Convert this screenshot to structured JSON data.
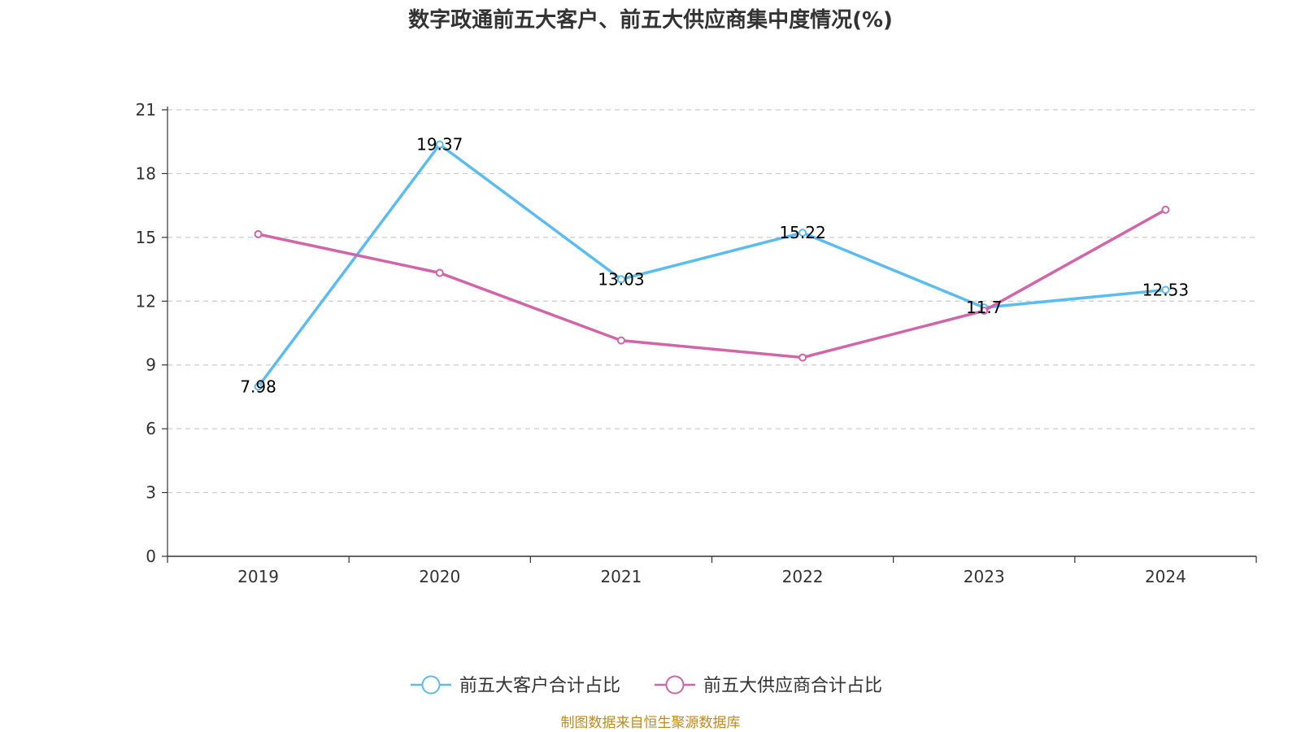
{
  "chart_data": {
    "type": "line",
    "title": "数字政通前五大客户、前五大供应商集中度情况(%)",
    "categories": [
      "2019",
      "2020",
      "2021",
      "2022",
      "2023",
      "2024"
    ],
    "ylim": [
      0,
      21
    ],
    "yticks": [
      0,
      3,
      6,
      9,
      12,
      15,
      18,
      21
    ],
    "grid": true,
    "legend_position": "bottom",
    "series": [
      {
        "name": "前五大客户合计占比",
        "color": "#5bbcef",
        "values": [
          7.98,
          19.37,
          13.03,
          15.22,
          11.7,
          12.53
        ],
        "labels": [
          "7.98",
          "19.37",
          "13.03",
          "15.22",
          "11.7",
          "12.53"
        ]
      },
      {
        "name": "前五大供应商合计占比",
        "color": "#d264a8",
        "values": [
          15.15,
          13.33,
          10.15,
          9.35,
          11.55,
          16.3
        ],
        "labels": []
      }
    ]
  },
  "source_note": "制图数据来自恒生聚源数据库",
  "source_color": "#c28a1e"
}
